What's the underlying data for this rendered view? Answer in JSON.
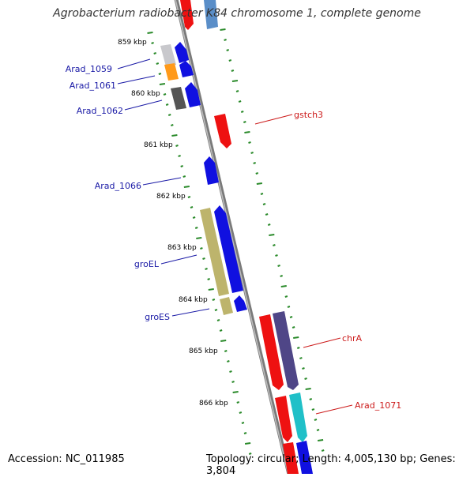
{
  "title": "Agrobacterium radiobacter K84 chromosome 1, complete genome",
  "footer": {
    "accession": "Accession: NC_011985",
    "summary": "Topology: circular; Length: 4,005,130 bp; Genes: 3,804"
  },
  "colors": {
    "backbone": "#808080",
    "tick": "#2a8a2a",
    "label_forward": "#1a1aa6",
    "label_reverse": "#cc1a1a"
  },
  "ticks": [
    {
      "label": "859 kbp"
    },
    {
      "label": "860 kbp"
    },
    {
      "label": "861 kbp"
    },
    {
      "label": "862 kbp"
    },
    {
      "label": "863 kbp"
    },
    {
      "label": "864 kbp"
    },
    {
      "label": "865 kbp"
    },
    {
      "label": "866 kbp"
    }
  ],
  "gene_labels": [
    {
      "name": "Arad_1059",
      "strand": "forward"
    },
    {
      "name": "Arad_1061",
      "strand": "forward"
    },
    {
      "name": "Arad_1062",
      "strand": "forward"
    },
    {
      "name": "Arad_1066",
      "strand": "forward"
    },
    {
      "name": "groEL",
      "strand": "forward"
    },
    {
      "name": "groES",
      "strand": "forward"
    },
    {
      "name": "gstch3",
      "strand": "reverse"
    },
    {
      "name": "chrA",
      "strand": "reverse"
    },
    {
      "name": "Arad_1071",
      "strand": "reverse"
    }
  ]
}
